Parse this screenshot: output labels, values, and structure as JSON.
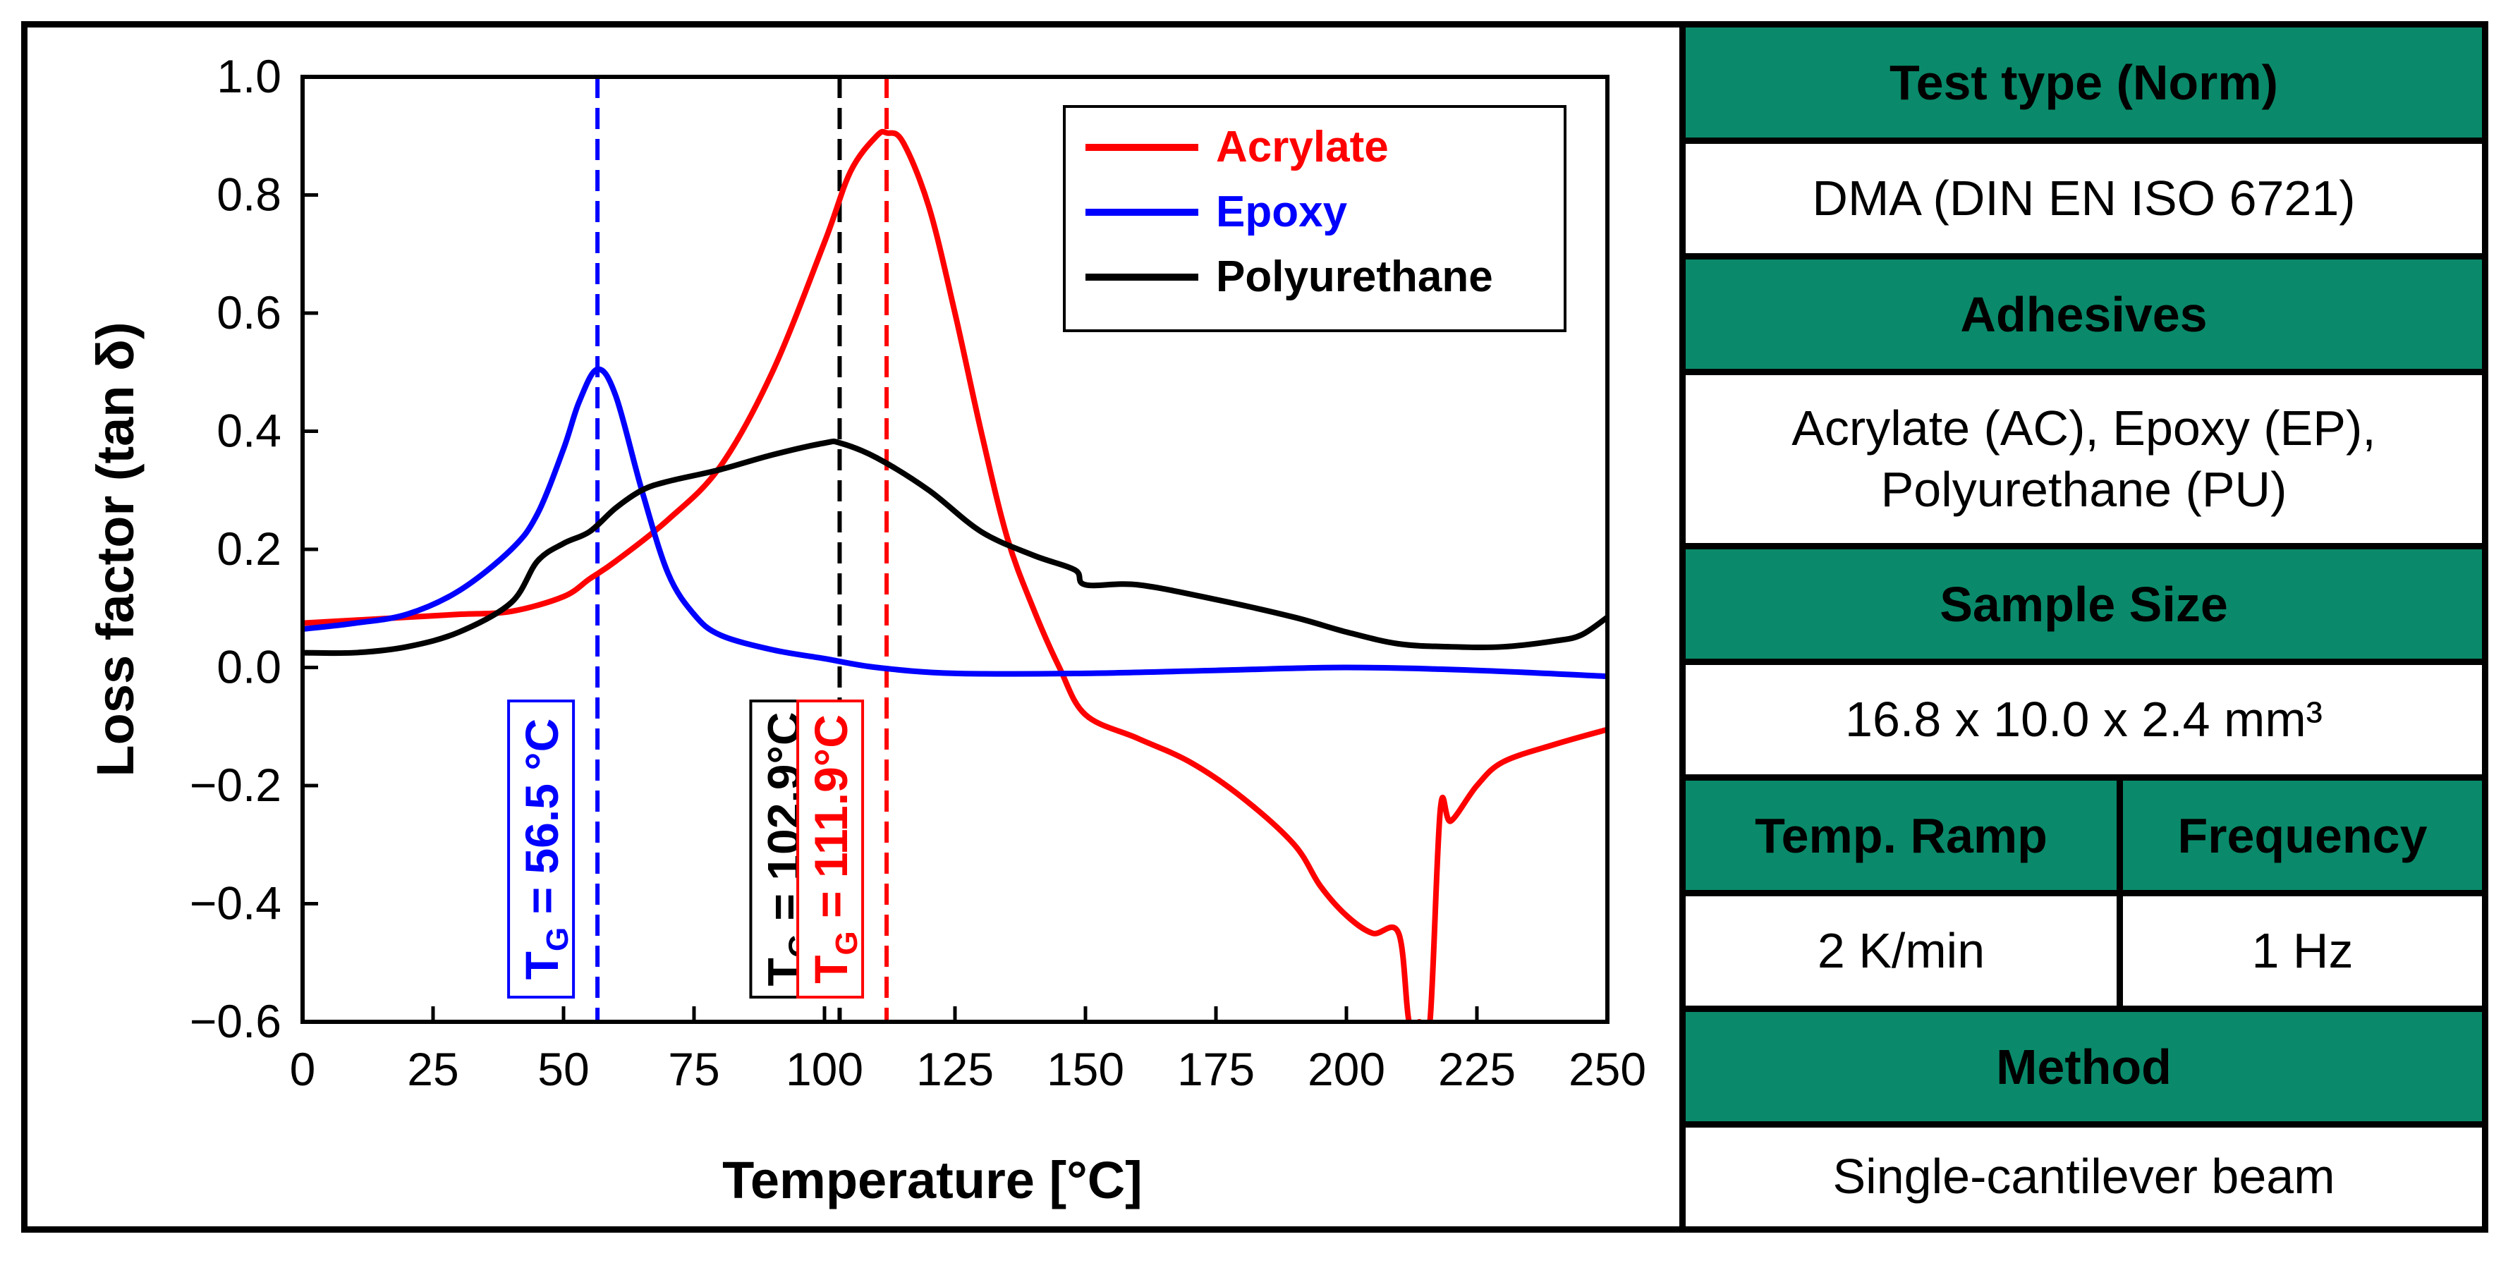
{
  "chart_data": {
    "type": "line",
    "xlabel": "Temperature [°C]",
    "ylabel": "Loss factor (tan δ)",
    "xlim": [
      0,
      250
    ],
    "ylim": [
      -0.6,
      1.0
    ],
    "x_ticks": [
      "0",
      "25",
      "50",
      "75",
      "100",
      "125",
      "150",
      "175",
      "200",
      "225",
      "250"
    ],
    "y_ticks": [
      "1.0",
      "0.8",
      "0.6",
      "0.4",
      "0.2",
      "0.0",
      "−0.2",
      "−0.4",
      "−0.6"
    ],
    "series": [
      {
        "name": "Acrylate",
        "color": "#ff0000",
        "x": [
          0,
          10,
          20,
          30,
          40,
          50,
          55,
          60,
          70,
          80,
          90,
          100,
          105,
          110,
          112,
          115,
          120,
          125,
          130,
          135,
          140,
          145,
          150,
          160,
          170,
          180,
          190,
          195,
          200,
          205,
          210,
          212,
          214,
          216,
          218,
          220,
          225,
          230,
          240,
          250
        ],
        "y": [
          0.075,
          0.08,
          0.085,
          0.09,
          0.095,
          0.12,
          0.15,
          0.18,
          0.25,
          0.34,
          0.5,
          0.72,
          0.84,
          0.9,
          0.905,
          0.89,
          0.78,
          0.6,
          0.4,
          0.22,
          0.1,
          0.0,
          -0.08,
          -0.12,
          -0.16,
          -0.22,
          -0.3,
          -0.37,
          -0.42,
          -0.45,
          -0.45,
          -0.6,
          -0.6,
          -0.6,
          -0.24,
          -0.26,
          -0.2,
          -0.16,
          -0.13,
          -0.105
        ]
      },
      {
        "name": "Epoxy",
        "color": "#0000ff",
        "x": [
          0,
          10,
          20,
          30,
          40,
          45,
          50,
          53,
          56.5,
          60,
          65,
          70,
          75,
          80,
          90,
          100,
          110,
          125,
          150,
          175,
          200,
          225,
          250
        ],
        "y": [
          0.065,
          0.075,
          0.09,
          0.13,
          0.2,
          0.26,
          0.37,
          0.45,
          0.505,
          0.46,
          0.3,
          0.16,
          0.09,
          0.055,
          0.03,
          0.015,
          0.0,
          -0.01,
          -0.01,
          -0.005,
          0.0,
          -0.005,
          -0.015
        ]
      },
      {
        "name": "Polyurethane",
        "color": "#000000",
        "x": [
          0,
          10,
          20,
          30,
          40,
          45,
          50,
          55,
          60,
          65,
          70,
          80,
          90,
          100,
          103,
          110,
          120,
          130,
          140,
          148,
          150,
          160,
          175,
          190,
          200,
          210,
          220,
          230,
          240,
          245,
          250
        ],
        "y": [
          0.025,
          0.025,
          0.035,
          0.06,
          0.11,
          0.18,
          0.21,
          0.23,
          0.27,
          0.3,
          0.315,
          0.335,
          0.36,
          0.38,
          0.38,
          0.355,
          0.3,
          0.23,
          0.19,
          0.165,
          0.14,
          0.14,
          0.115,
          0.085,
          0.06,
          0.04,
          0.035,
          0.035,
          0.045,
          0.055,
          0.085
        ]
      }
    ],
    "tg_lines": [
      {
        "x": 56.5,
        "label": "T_G = 56.5 °C",
        "sub_prefix": "T",
        "sub": "G",
        "rest": " = 56.5 °C",
        "color": "#0000ff"
      },
      {
        "x": 102.9,
        "label": "T_G = 102.9°C",
        "sub_prefix": "T",
        "sub": "G",
        "rest": " = 102.9°C",
        "color": "#000000"
      },
      {
        "x": 111.9,
        "label": "T_G = 111.9°C",
        "sub_prefix": "T",
        "sub": "G",
        "rest": " = 111.9°C",
        "color": "#ff0000"
      }
    ],
    "legend_position": "top-right"
  },
  "table": {
    "test_type_header": "Test type (Norm)",
    "test_type_value": "DMA (DIN EN ISO 6721)",
    "adhesives_header": "Adhesives",
    "adhesives_value_line1": "Acrylate (AC), Epoxy (EP),",
    "adhesives_value_line2": "Polyurethane (PU)",
    "sample_size_header": "Sample Size",
    "sample_size_value": "16.8 x 10.0 x 2.4 mm³",
    "temp_ramp_header": "Temp. Ramp",
    "frequency_header": "Frequency",
    "temp_ramp_value": "2 K/min",
    "frequency_value": "1 Hz",
    "method_header": "Method",
    "method_value": "Single-cantilever beam"
  },
  "colors": {
    "header_bg": "#0a8a6a"
  }
}
